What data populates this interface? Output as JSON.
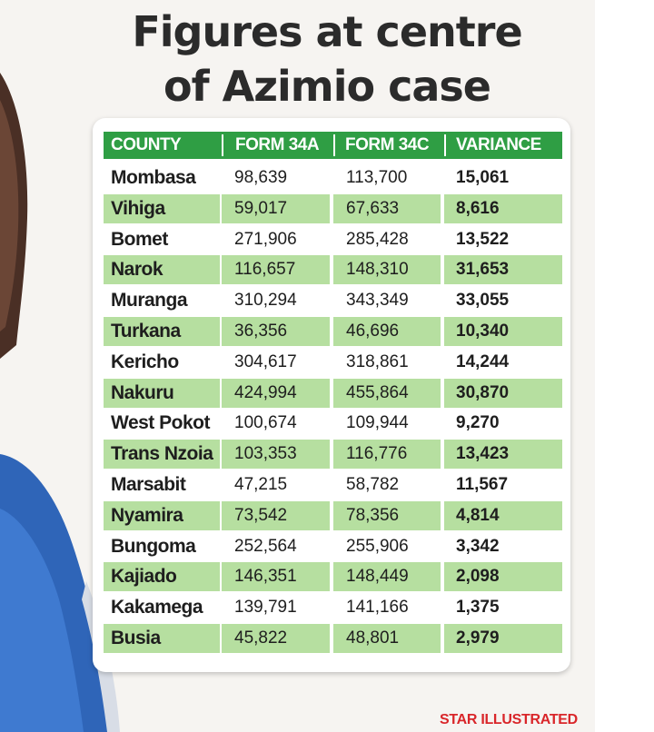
{
  "title_lines": [
    "Figures at centre",
    "of Azimio case"
  ],
  "credit": "STAR ILLUSTRATED",
  "colors": {
    "header_bg": "#2f9e44",
    "row_shade": "#b6dfa0",
    "credit_text": "#d9262a"
  },
  "chart_data": {
    "type": "table",
    "title": "Figures at centre of Azimio case",
    "columns": [
      "COUNTY",
      "FORM 34A",
      "FORM 34C",
      "VARIANCE"
    ],
    "rows": [
      [
        "Mombasa",
        "98,639",
        "113,700",
        "15,061"
      ],
      [
        "Vihiga",
        "59,017",
        "67,633",
        "8,616"
      ],
      [
        "Bomet",
        "271,906",
        "285,428",
        "13,522"
      ],
      [
        "Narok",
        "116,657",
        "148,310",
        "31,653"
      ],
      [
        "Muranga",
        "310,294",
        "343,349",
        "33,055"
      ],
      [
        "Turkana",
        "36,356",
        "46,696",
        "10,340"
      ],
      [
        "Kericho",
        "304,617",
        "318,861",
        "14,244"
      ],
      [
        "Nakuru",
        "424,994",
        "455,864",
        "30,870"
      ],
      [
        "West Pokot",
        "100,674",
        "109,944",
        "9,270"
      ],
      [
        "Trans Nzoia",
        "103,353",
        "116,776",
        "13,423"
      ],
      [
        "Marsabit",
        "47,215",
        "58,782",
        "11,567"
      ],
      [
        "Nyamira",
        "73,542",
        "78,356",
        "4,814"
      ],
      [
        "Bungoma",
        "252,564",
        "255,906",
        "3,342"
      ],
      [
        "Kajiado",
        "146,351",
        "148,449",
        "2,098"
      ],
      [
        "Kakamega",
        "139,791",
        "141,166",
        "1,375"
      ],
      [
        "Busia",
        "45,822",
        "48,801",
        "2,979"
      ]
    ]
  }
}
